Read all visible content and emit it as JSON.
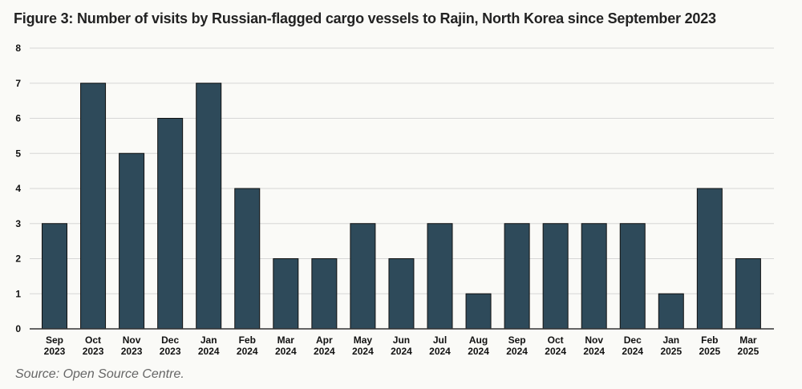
{
  "title": "Figure 3: Number of visits by Russian-flagged cargo vessels to Rajin, North Korea since September 2023",
  "source": "Source: Open Source Centre.",
  "chart_data": {
    "type": "bar",
    "title": "Figure 3: Number of visits by Russian-flagged cargo vessels to Rajin, North Korea since September 2023",
    "xlabel": "",
    "ylabel": "",
    "ylim": [
      0,
      8
    ],
    "yticks": [
      0,
      1,
      2,
      3,
      4,
      5,
      6,
      7,
      8
    ],
    "grid": true,
    "legend": "none",
    "bar_color": "#2e4a5a",
    "categories": [
      [
        "Sep",
        "2023"
      ],
      [
        "Oct",
        "2023"
      ],
      [
        "Nov",
        "2023"
      ],
      [
        "Dec",
        "2023"
      ],
      [
        "Jan",
        "2024"
      ],
      [
        "Feb",
        "2024"
      ],
      [
        "Mar",
        "2024"
      ],
      [
        "Apr",
        "2024"
      ],
      [
        "May",
        "2024"
      ],
      [
        "Jun",
        "2024"
      ],
      [
        "Jul",
        "2024"
      ],
      [
        "Aug",
        "2024"
      ],
      [
        "Sep",
        "2024"
      ],
      [
        "Oct",
        "2024"
      ],
      [
        "Nov",
        "2024"
      ],
      [
        "Dec",
        "2024"
      ],
      [
        "Jan",
        "2025"
      ],
      [
        "Feb",
        "2025"
      ],
      [
        "Mar",
        "2025"
      ]
    ],
    "values": [
      3,
      7,
      5,
      6,
      7,
      4,
      2,
      2,
      3,
      2,
      3,
      1,
      3,
      3,
      3,
      3,
      1,
      4,
      2
    ]
  }
}
